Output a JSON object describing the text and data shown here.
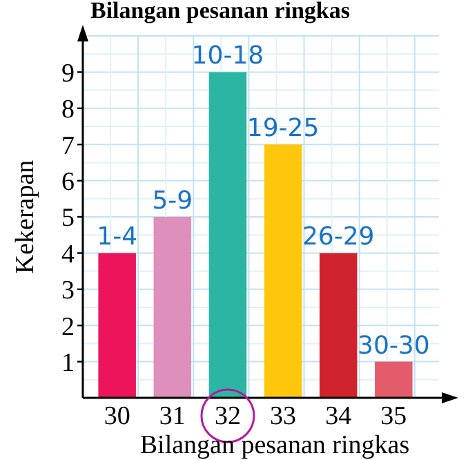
{
  "chart_data": {
    "type": "bar",
    "title": "Bilangan pesanan ringkas",
    "xlabel": "Bilangan pesanan ringkas",
    "ylabel": "Kekerapan",
    "categories": [
      "30",
      "31",
      "32",
      "33",
      "34",
      "35"
    ],
    "values": [
      4,
      5,
      9,
      7,
      4,
      1
    ],
    "colors": [
      "#ec145a",
      "#df8fbc",
      "#2bb5a3",
      "#fec70b",
      "#d0232e",
      "#e45c6c"
    ],
    "ylim": [
      0,
      10
    ],
    "yticks": [
      1,
      2,
      3,
      4,
      5,
      6,
      7,
      8,
      9
    ],
    "grid": true,
    "annotations": [
      {
        "text": "1-4",
        "x": "30",
        "y": 4
      },
      {
        "text": "5-9",
        "x": "31",
        "y": 5
      },
      {
        "text": "10-18",
        "x": "32",
        "y": 9
      },
      {
        "text": "19-25",
        "x": "33",
        "y": 7
      },
      {
        "text": "26-29",
        "x": "34",
        "y": 4
      },
      {
        "text": "30-30",
        "x": "35",
        "y": 1
      }
    ]
  }
}
